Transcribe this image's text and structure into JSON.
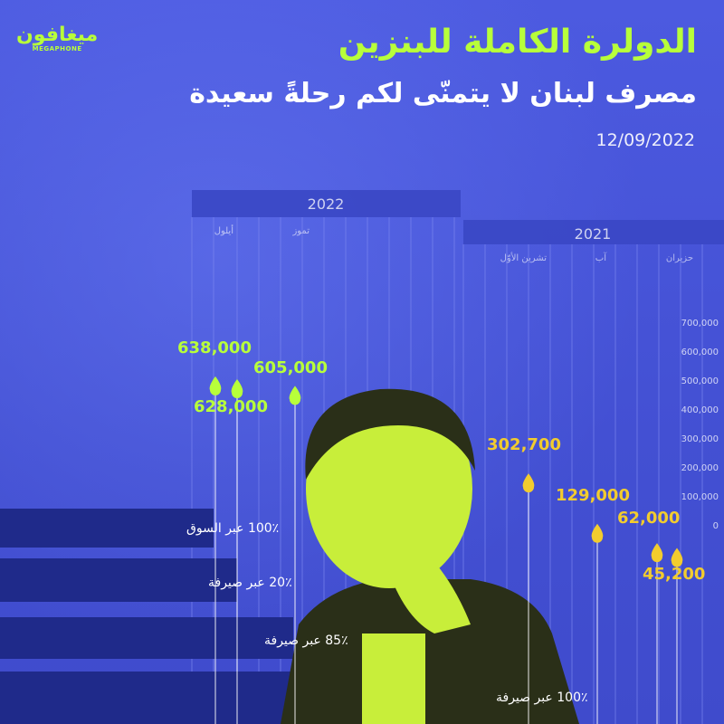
{
  "logo": {
    "mark": "ميغافون",
    "sub": "MEGAPHONE"
  },
  "header": {
    "title": "الدولرة الكاملة للبنزين",
    "subtitle": "مصرف لبنان لا يتمنّى لكم رحلةً سعيدة",
    "date": "12/09/2022"
  },
  "colors": {
    "background": "#4a55d8",
    "accent_green": "#b8ff3a",
    "accent_yellow": "#f2cc2e",
    "band": "#1f2a8a"
  },
  "chart_data": {
    "type": "scatter",
    "year_labels": [
      "2022",
      "2021"
    ],
    "month_labels": [
      "أيلول",
      "تموز",
      "تشرين الأوّل",
      "آب",
      "حزيران"
    ],
    "y_ticks": [
      "700,000",
      "600,000",
      "500,000",
      "400,000",
      "300,000",
      "200,000",
      "100,000",
      "0"
    ],
    "ylim": [
      0,
      700000
    ],
    "points": [
      {
        "label": "638,000",
        "value": 638000,
        "year": "2022",
        "color": "#b8ff3a"
      },
      {
        "label": "628,000",
        "value": 628000,
        "year": "2022",
        "color": "#b8ff3a"
      },
      {
        "label": "605,000",
        "value": 605000,
        "year": "2022",
        "color": "#b8ff3a"
      },
      {
        "label": "302,700",
        "value": 302700,
        "year": "2021",
        "color": "#f2cc2e"
      },
      {
        "label": "129,000",
        "value": 129000,
        "year": "2021",
        "color": "#f2cc2e"
      },
      {
        "label": "62,000",
        "value": 62000,
        "year": "2021",
        "color": "#f2cc2e"
      },
      {
        "label": "45,200",
        "value": 45200,
        "year": "2021",
        "color": "#f2cc2e"
      }
    ],
    "annotations": [
      "100٪ عبر السوق",
      "20٪ عبر صيرفة",
      "85٪ عبر صيرفة",
      "100٪ عبر صيرفة"
    ]
  }
}
